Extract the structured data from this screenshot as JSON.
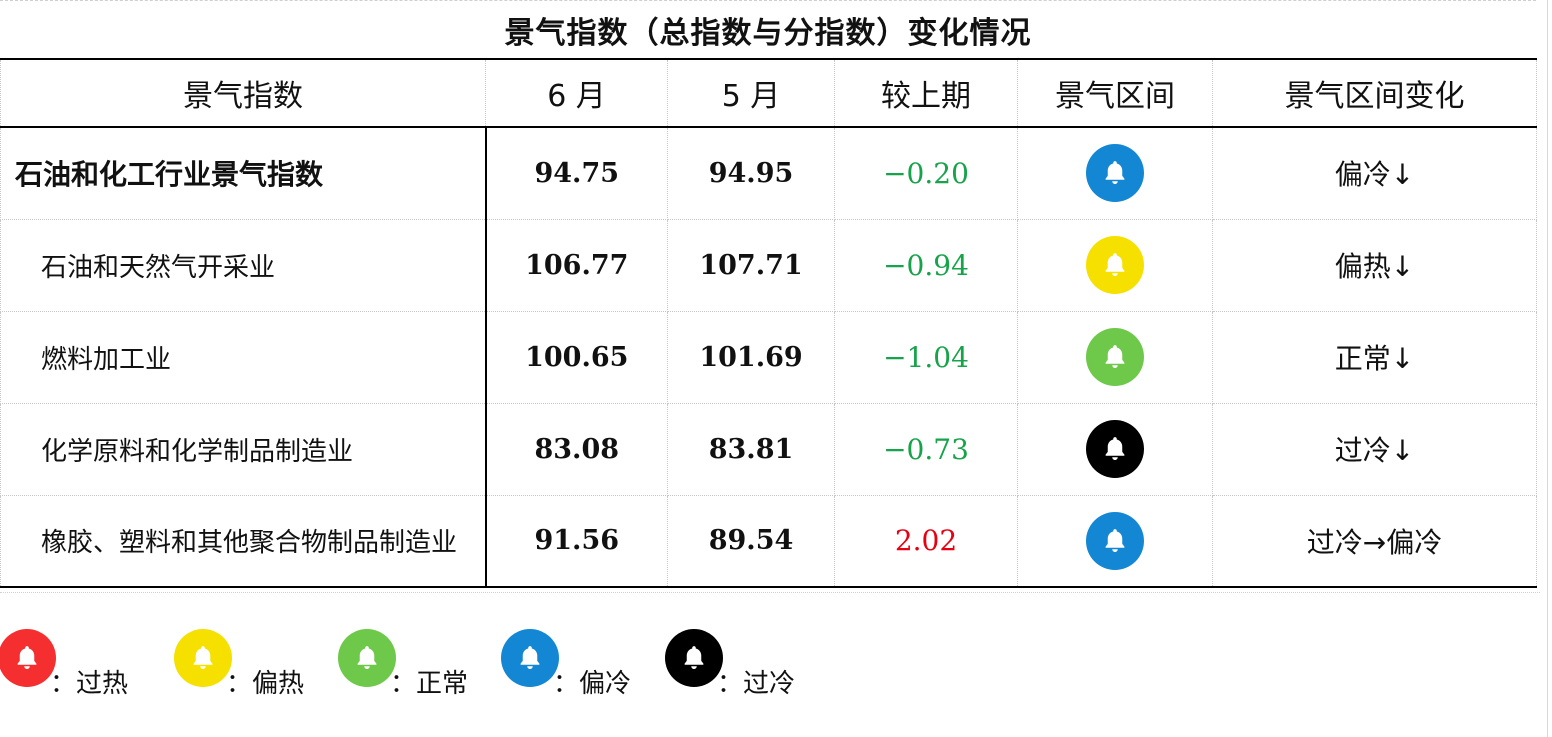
{
  "title": "景气指数（总指数与分指数）变化情况",
  "headers": [
    "景气指数",
    "6 月",
    "5 月",
    "较上期",
    "景气区间",
    "景气区间变化"
  ],
  "rows": [
    {
      "name": "石油和化工行业景气指数",
      "jun": "94.75",
      "may": "94.95",
      "change": "−0.20",
      "direction": "neg",
      "zone_color": "#1487d4",
      "zone_icon": "bell-icon",
      "trend": "偏冷↓"
    },
    {
      "name": "石油和天然气开采业",
      "jun": "106.77",
      "may": "107.71",
      "change": "−0.94",
      "direction": "neg",
      "zone_color": "#f5e000",
      "zone_icon": "bell-icon",
      "trend": "偏热↓"
    },
    {
      "name": "燃料加工业",
      "jun": "100.65",
      "may": "101.69",
      "change": "−1.04",
      "direction": "neg",
      "zone_color": "#6ec94a",
      "zone_icon": "bell-icon",
      "trend": "正常↓"
    },
    {
      "name": "化学原料和化学制品制造业",
      "jun": "83.08",
      "may": "83.81",
      "change": "−0.73",
      "direction": "neg",
      "zone_color": "#000000",
      "zone_icon": "bell-icon",
      "trend": "过冷↓"
    },
    {
      "name": "橡胶、塑料和其他聚合物制品制造业",
      "jun": "91.56",
      "may": "89.54",
      "change": "2.02",
      "direction": "pos",
      "zone_color": "#1487d4",
      "zone_icon": "bell-icon",
      "trend": "过冷→偏冷"
    }
  ],
  "legend": [
    {
      "color": "#f52f2f",
      "label": "：过热",
      "icon": "bell-icon"
    },
    {
      "color": "#f5e000",
      "label": "：偏热",
      "icon": "bell-icon"
    },
    {
      "color": "#6ec94a",
      "label": "：正常",
      "icon": "bell-icon"
    },
    {
      "color": "#1487d4",
      "label": "：偏冷",
      "icon": "bell-icon"
    },
    {
      "color": "#000000",
      "label": "：过冷",
      "icon": "bell-icon"
    }
  ]
}
